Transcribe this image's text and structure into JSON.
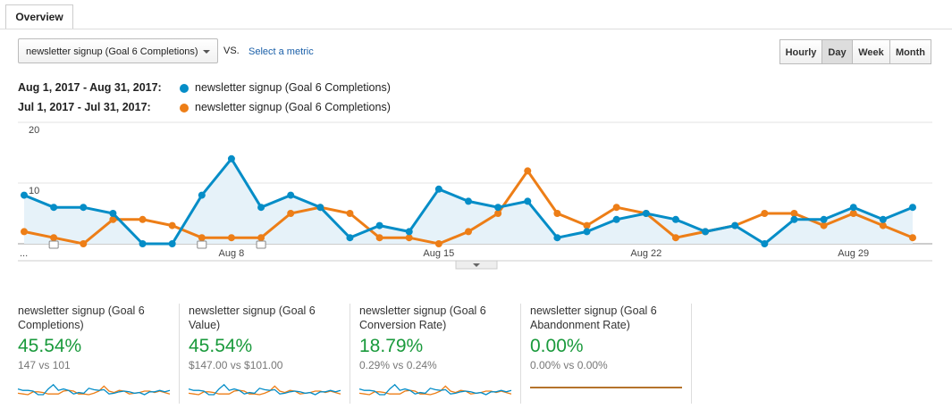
{
  "tabs": [
    "Overview"
  ],
  "controls": {
    "metric": "newsletter signup (Goal 6 Completions)",
    "vs": "VS.",
    "compare": "Select a metric",
    "granularity": [
      "Hourly",
      "Day",
      "Week",
      "Month"
    ]
  },
  "chart_data": {
    "type": "line",
    "categories": [
      "...",
      null,
      null,
      null,
      null,
      null,
      null,
      "Aug 8",
      null,
      null,
      null,
      null,
      null,
      null,
      "Aug 15",
      null,
      null,
      null,
      null,
      null,
      null,
      "Aug 22",
      null,
      null,
      null,
      null,
      null,
      null,
      "Aug 29",
      null,
      null
    ],
    "series": [
      {
        "name": "newsletter signup (Goal 6 Completions)",
        "period": "Aug 1, 2017 - Aug 31, 2017:",
        "color": "#058dc7",
        "values": [
          8,
          6,
          6,
          5,
          0,
          0,
          8,
          14,
          6,
          8,
          6,
          1,
          3,
          2,
          9,
          7,
          6,
          7,
          1,
          2,
          4,
          5,
          4,
          2,
          3,
          0,
          4,
          4,
          6,
          4,
          6
        ]
      },
      {
        "name": "newsletter signup (Goal 6 Completions)",
        "period": "Jul 1, 2017 - Jul 31, 2017:",
        "color": "#ed7e17",
        "values": [
          2,
          1,
          0,
          4,
          4,
          3,
          1,
          1,
          1,
          5,
          6,
          5,
          1,
          1,
          0,
          2,
          5,
          12,
          5,
          3,
          6,
          5,
          1,
          2,
          3,
          5,
          5,
          3,
          5,
          3,
          1
        ]
      }
    ],
    "ylim": [
      0,
      20
    ],
    "yticks": [
      10,
      20
    ],
    "grid": true
  },
  "scorecards": [
    {
      "title": "newsletter signup (Goal 6 Completions)",
      "change": "45.54%",
      "comparison": "147 vs 101"
    },
    {
      "title": "newsletter signup (Goal 6 Value)",
      "change": "45.54%",
      "comparison": "$147.00 vs $101.00"
    },
    {
      "title": "newsletter signup (Goal 6 Conversion Rate)",
      "change": "18.79%",
      "comparison": "0.29% vs 0.24%"
    },
    {
      "title": "newsletter signup (Goal 6 Abandonment Rate)",
      "change": "0.00%",
      "comparison": "0.00% vs 0.00%"
    }
  ]
}
